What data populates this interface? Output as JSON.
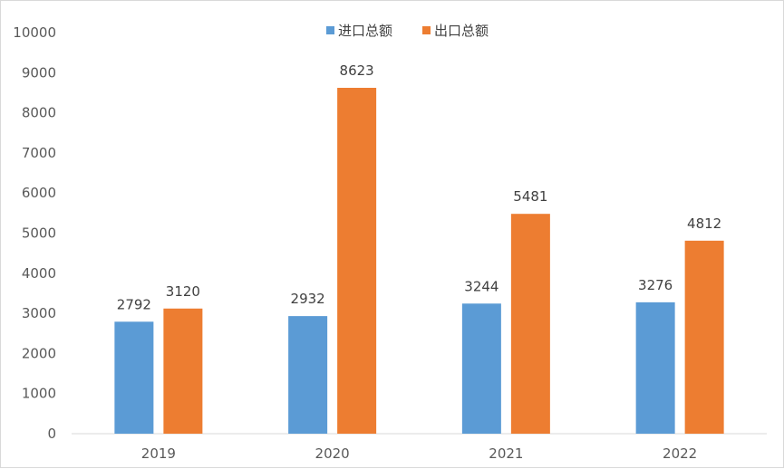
{
  "chart_data": {
    "type": "bar",
    "categories": [
      "2019",
      "2020",
      "2021",
      "2022"
    ],
    "series": [
      {
        "name": "进口总额",
        "values": [
          2792,
          2932,
          3244,
          3276
        ],
        "color": "#5b9bd5"
      },
      {
        "name": "出口总额",
        "values": [
          3120,
          8623,
          5481,
          4812
        ],
        "color": "#ed7d31"
      }
    ],
    "ylim": [
      0,
      10000
    ],
    "yticks": [
      0,
      1000,
      2000,
      3000,
      4000,
      5000,
      6000,
      7000,
      8000,
      9000,
      10000
    ],
    "legend_position": "top-center",
    "grid": false,
    "data_labels": true,
    "title": "",
    "xlabel": "",
    "ylabel": ""
  }
}
